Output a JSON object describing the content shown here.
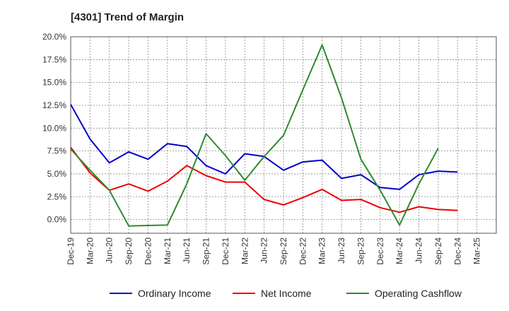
{
  "chart_data": {
    "type": "line",
    "title": "[4301]  Trend of Margin",
    "categories": [
      "Dec-19",
      "Mar-20",
      "Jun-20",
      "Sep-20",
      "Dec-20",
      "Mar-21",
      "Jun-21",
      "Sep-21",
      "Dec-21",
      "Mar-22",
      "Jun-22",
      "Sep-22",
      "Dec-22",
      "Mar-23",
      "Jun-23",
      "Sep-23",
      "Dec-23",
      "Mar-24",
      "Jun-24",
      "Sep-24",
      "Dec-24",
      "Mar-25"
    ],
    "y_ticks": [
      "20.0%",
      "17.5%",
      "15.0%",
      "12.5%",
      "10.0%",
      "7.5%",
      "5.0%",
      "2.5%",
      "0.0%"
    ],
    "ylim": [
      -1.5,
      20.0
    ],
    "grid": true,
    "legend_position": "bottom",
    "series": [
      {
        "name": "Ordinary Income",
        "color": "#0000cc",
        "values": [
          12.6,
          8.8,
          6.2,
          7.4,
          6.6,
          8.3,
          8.0,
          5.9,
          5.0,
          7.2,
          6.9,
          5.4,
          6.3,
          6.5,
          4.5,
          4.9,
          3.5,
          3.3,
          4.9,
          5.3,
          5.2,
          null
        ]
      },
      {
        "name": "Net Income",
        "color": "#ee0000",
        "values": [
          7.9,
          5.1,
          3.2,
          3.9,
          3.1,
          4.2,
          5.9,
          4.8,
          4.1,
          4.1,
          2.2,
          1.6,
          2.4,
          3.3,
          2.1,
          2.2,
          1.3,
          0.8,
          1.4,
          1.1,
          1.0,
          null
        ]
      },
      {
        "name": "Operating Cashflow",
        "color": "#2e8b2e",
        "values": [
          7.7,
          5.4,
          3.2,
          -0.7,
          -0.65,
          -0.6,
          3.9,
          9.4,
          7.0,
          4.3,
          6.9,
          9.2,
          14.2,
          19.1,
          13.3,
          6.6,
          3.2,
          -0.6,
          3.9,
          7.8,
          null,
          null
        ]
      }
    ]
  }
}
